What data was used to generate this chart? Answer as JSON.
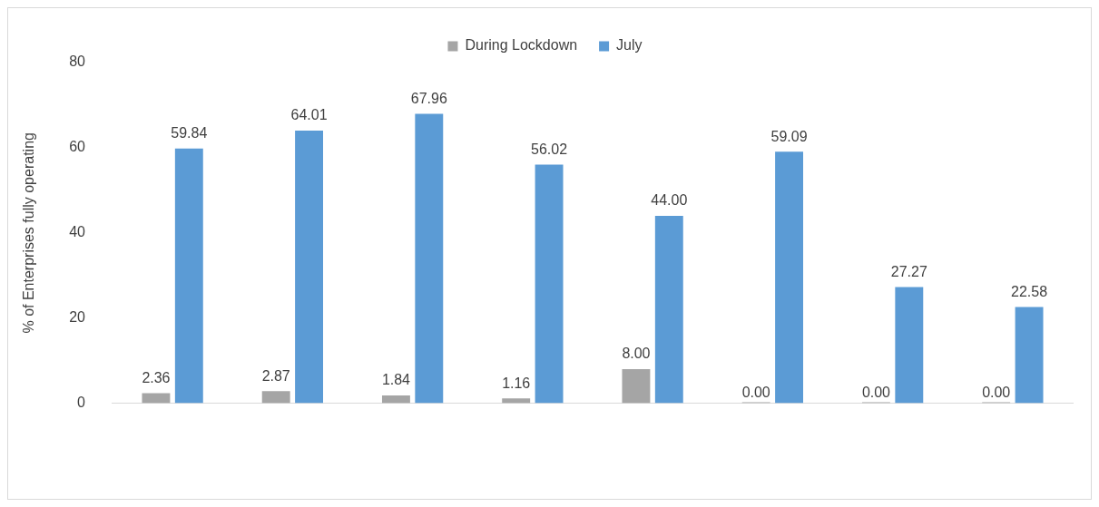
{
  "chart_data": {
    "type": "bar",
    "ylabel": "% of Enterprises fully operating",
    "categories": [
      null,
      null,
      null,
      null,
      null,
      null,
      null,
      null
    ],
    "series": [
      {
        "name": "During Lockdown",
        "color": "#a5a5a5",
        "values": [
          2.36,
          2.87,
          1.84,
          1.16,
          8.0,
          0.0,
          0.0,
          0.0
        ],
        "value_labels": [
          "2.36",
          "2.87",
          "1.84",
          "1.16",
          "8.00",
          "0.00",
          "0.00",
          "0.00"
        ]
      },
      {
        "name": "July",
        "color": "#5b9bd5",
        "values": [
          59.84,
          64.01,
          67.96,
          56.02,
          44.0,
          59.09,
          27.27,
          22.58
        ],
        "value_labels": [
          "59.84",
          "64.01",
          "67.96",
          "56.02",
          "44.00",
          "59.09",
          "27.27",
          "22.58"
        ]
      }
    ],
    "ylim": [
      0,
      80
    ],
    "yticks": [
      0,
      20,
      40,
      60,
      80
    ],
    "grid": false,
    "legend": "top"
  }
}
